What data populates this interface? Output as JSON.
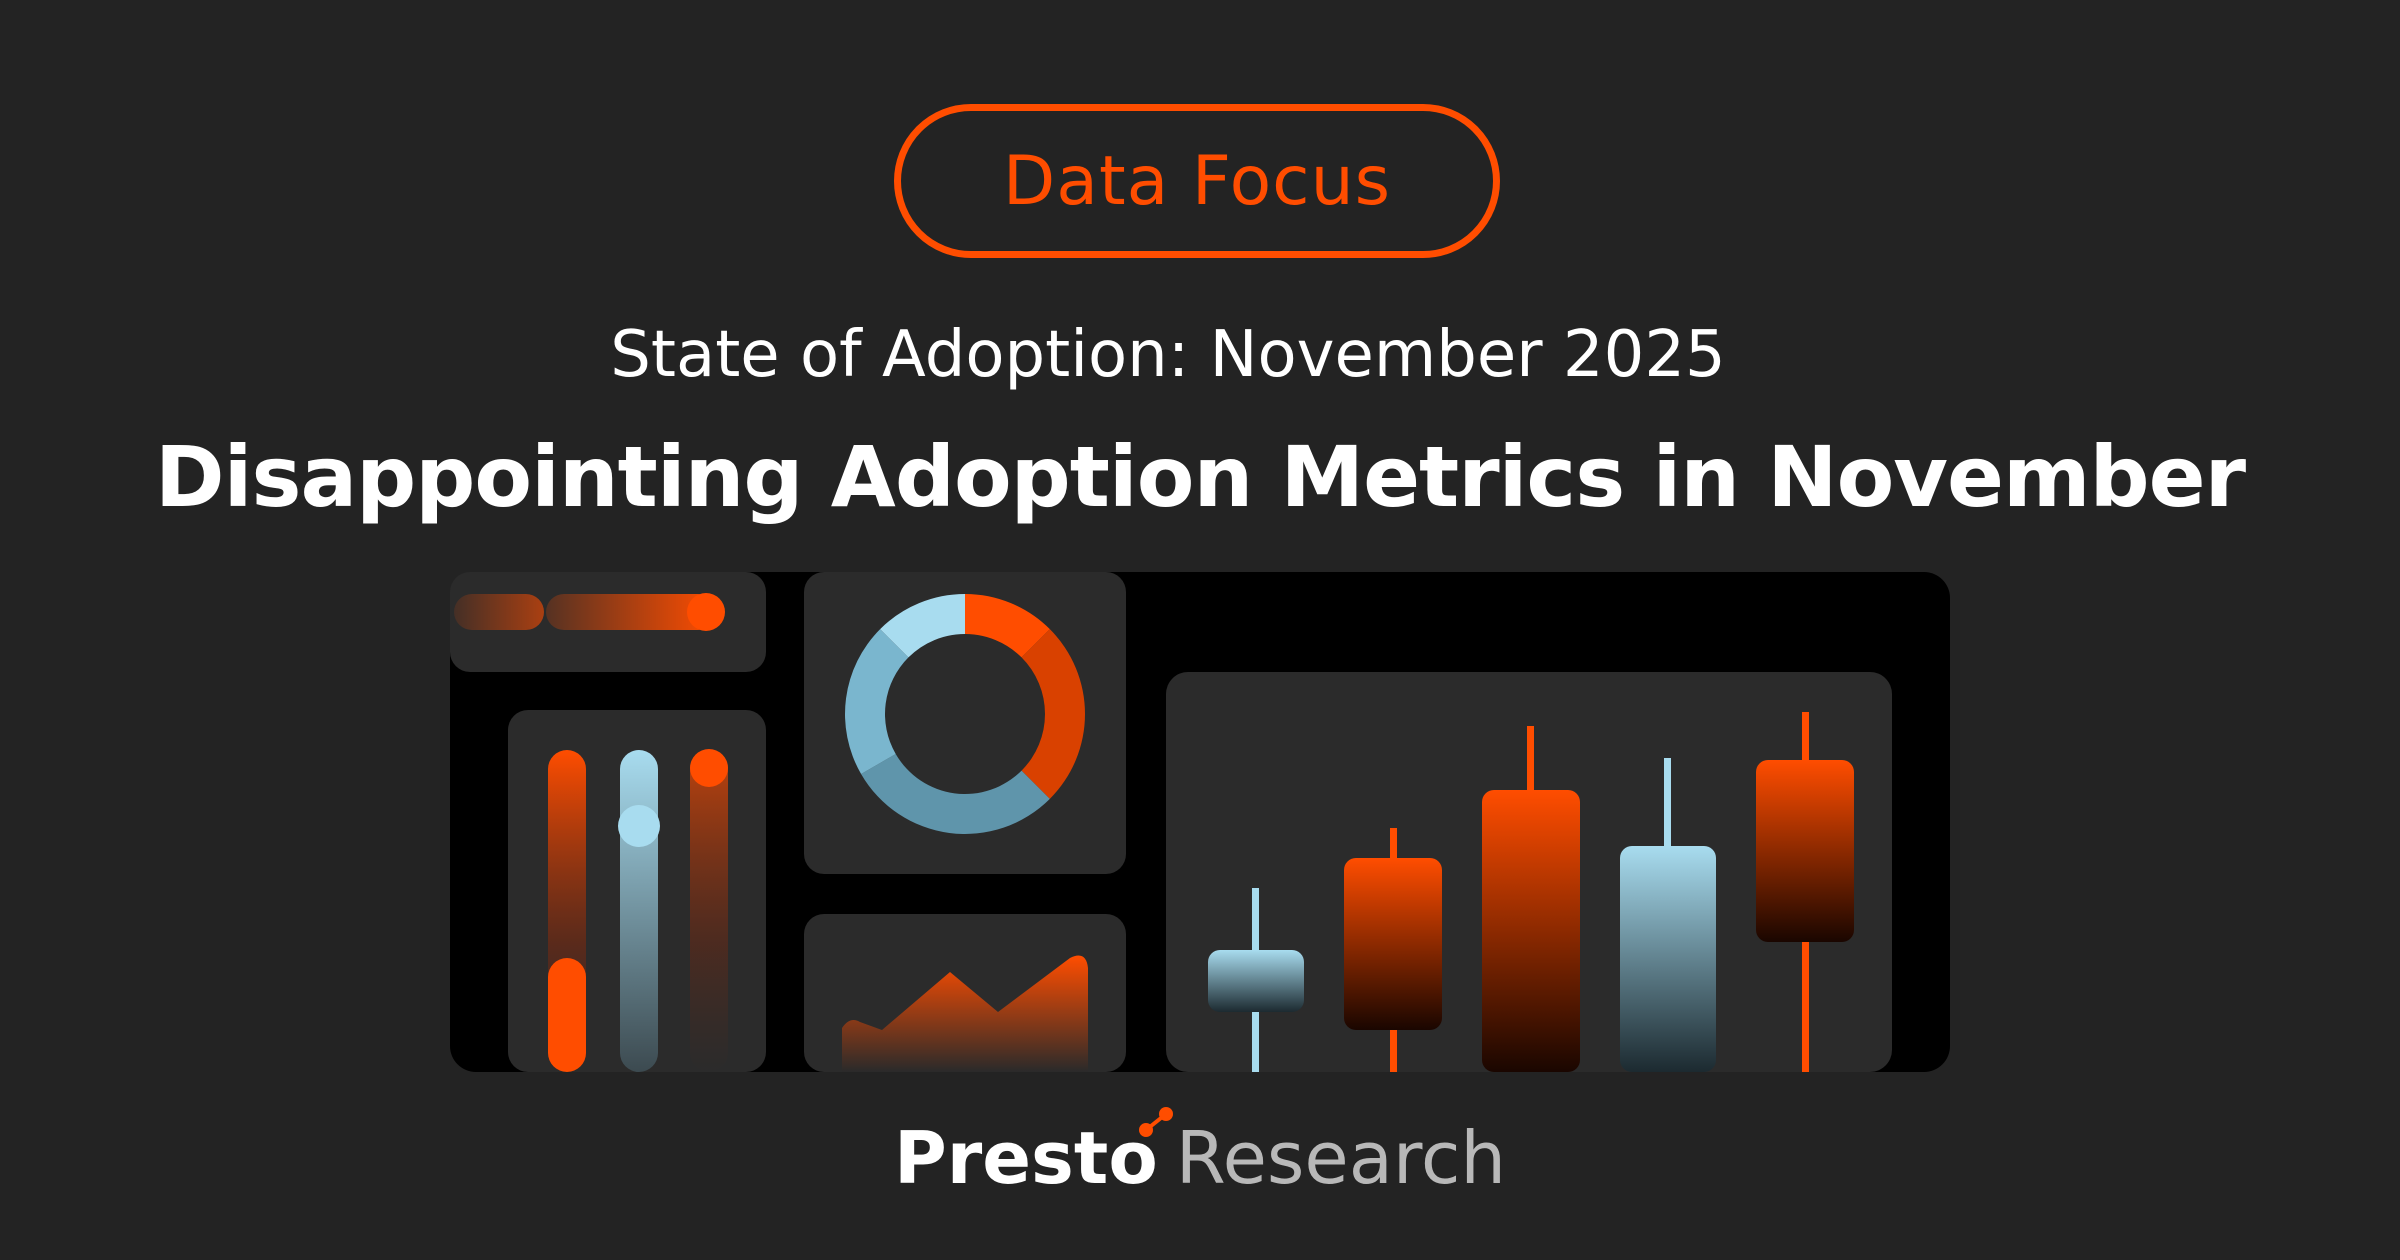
{
  "badge": "Data Focus",
  "subtitle": "State of Adoption: November 2025",
  "title": "Disappointing Adoption Metrics in November",
  "brand": {
    "name": "Presto",
    "suffix": "Research"
  },
  "colors": {
    "accent": "#ff4d00",
    "background": "#232323",
    "light_blue": "#a8dcef"
  }
}
